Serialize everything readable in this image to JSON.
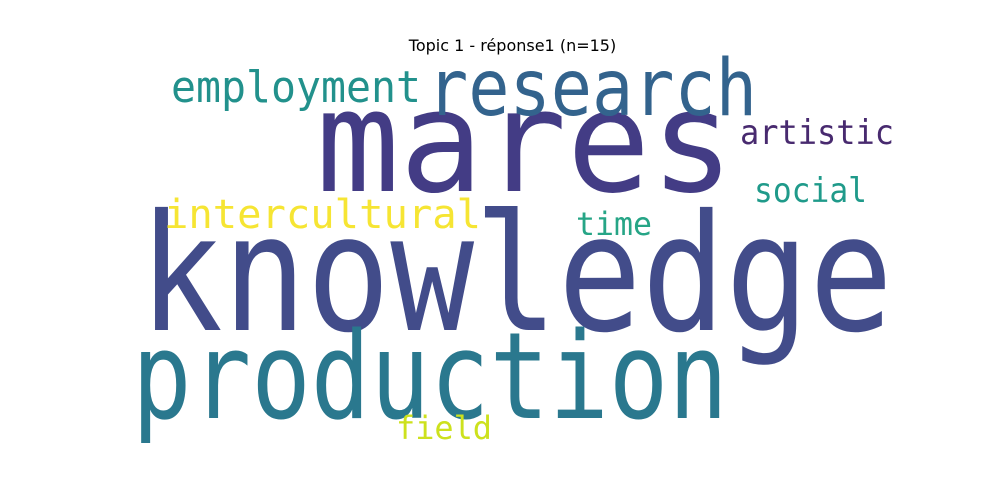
{
  "figure": {
    "title": "Topic 1 - réponse1 (n=15)"
  },
  "words": [
    {
      "id": "knowledge",
      "text": "knowledge",
      "color": "#424c8a"
    },
    {
      "id": "production",
      "text": "production",
      "color": "#2a788e"
    },
    {
      "id": "mares",
      "text": "mares",
      "color": "#433c85"
    },
    {
      "id": "research",
      "text": "research",
      "color": "#33638d"
    },
    {
      "id": "employment",
      "text": "employment",
      "color": "#22918c"
    },
    {
      "id": "intercultural",
      "text": "intercultural",
      "color": "#f6e533"
    },
    {
      "id": "artistic",
      "text": "artistic",
      "color": "#482a6f"
    },
    {
      "id": "social",
      "text": "social",
      "color": "#1f9a8a"
    },
    {
      "id": "time",
      "text": "time",
      "color": "#26a586"
    },
    {
      "id": "field",
      "text": "field",
      "color": "#cde11d"
    }
  ]
}
